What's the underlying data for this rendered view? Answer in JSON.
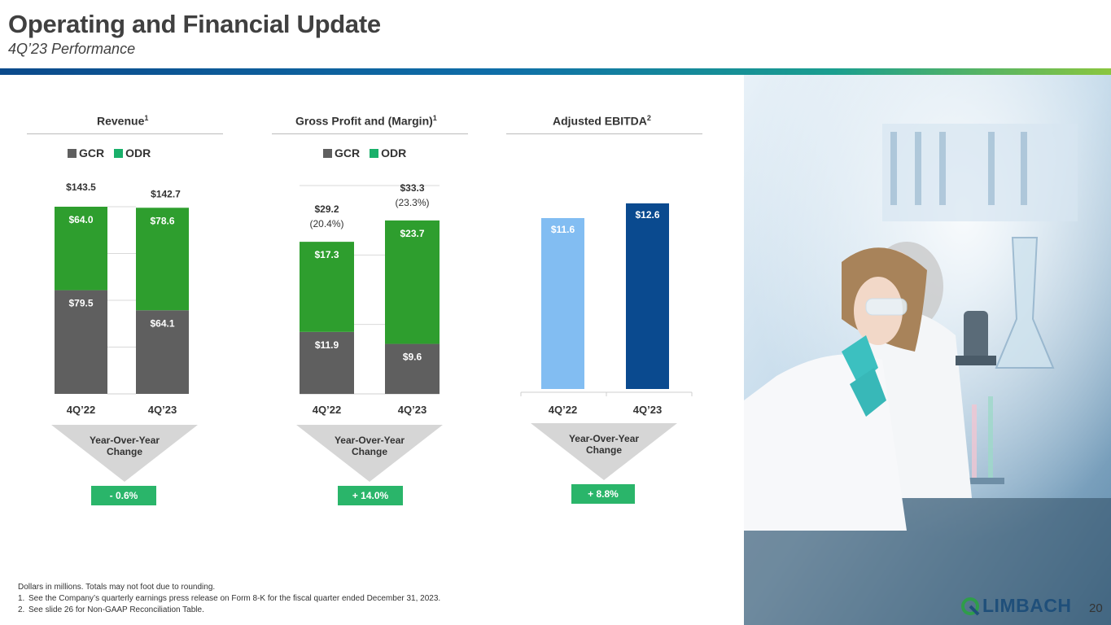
{
  "header": {
    "title": "Operating and Financial Update",
    "subtitle": "4Q’23 Performance"
  },
  "colors": {
    "gcr": "#5f5f5f",
    "odr": "#2e9e2e",
    "ebitda_4q22": "#82bdf2",
    "ebitda_4q23": "#0a4a8f",
    "badge": "#2ab56a",
    "accent_bar_start": "#0b4a8b",
    "accent_bar_end": "#8ac63f"
  },
  "legend": {
    "gcr": "GCR",
    "odr": "ODR"
  },
  "panels": {
    "revenue": {
      "title": "Revenue",
      "sup": "1",
      "yoy_line1": "Year-Over-Year",
      "yoy_line2": "Change",
      "yoy_value": "- 0.6%"
    },
    "gross_profit": {
      "title": "Gross Profit and (Margin)",
      "sup": "1",
      "yoy_line1": "Year-Over-Year",
      "yoy_line2": "Change",
      "yoy_value": "+ 14.0%"
    },
    "ebitda": {
      "title": "Adjusted EBITDA",
      "sup": "2",
      "yoy_line1": "Year-Over-Year",
      "yoy_line2": "Change",
      "yoy_value": "+ 8.8%"
    }
  },
  "chart_data": [
    {
      "type": "bar",
      "stacked": true,
      "title": "Revenue",
      "categories": [
        "4Q’22",
        "4Q’23"
      ],
      "series": [
        {
          "name": "GCR",
          "values": [
            79.5,
            64.1
          ],
          "labels": [
            "$79.5",
            "$64.1"
          ]
        },
        {
          "name": "ODR",
          "values": [
            64.0,
            78.6
          ],
          "labels": [
            "$64.0",
            "$78.6"
          ]
        }
      ],
      "totals": [
        "$143.5",
        "$142.7"
      ],
      "ylim": [
        0,
        143.5
      ],
      "legend_position": "top",
      "grid": true
    },
    {
      "type": "bar",
      "stacked": true,
      "title": "Gross Profit and (Margin)",
      "categories": [
        "4Q’22",
        "4Q’23"
      ],
      "series": [
        {
          "name": "GCR",
          "values": [
            11.9,
            9.6
          ],
          "labels": [
            "$11.9",
            "$9.6"
          ]
        },
        {
          "name": "ODR",
          "values": [
            17.3,
            23.7
          ],
          "labels": [
            "$17.3",
            "$23.7"
          ]
        }
      ],
      "totals": [
        "$29.2",
        "$33.3"
      ],
      "margins": [
        "(20.4%)",
        "(23.3%)"
      ],
      "ylim": [
        0,
        40
      ],
      "legend_position": "top",
      "grid": true
    },
    {
      "type": "bar",
      "title": "Adjusted EBITDA",
      "categories": [
        "4Q’22",
        "4Q’23"
      ],
      "values": [
        11.6,
        12.6
      ],
      "labels": [
        "$11.6",
        "$12.6"
      ],
      "ylim": [
        0,
        14.25
      ],
      "grid": false
    }
  ],
  "footnotes": {
    "intro": "Dollars in millions. Totals may not foot due to rounding.",
    "n1": "1.",
    "t1": "See the Company’s quarterly earnings press release on Form 8-K for the fiscal quarter ended December 31, 2023.",
    "n2": "2.",
    "t2": "See slide 26 for Non-GAAP Reconciliation Table."
  },
  "brand": {
    "logo_text": "LIMBACH"
  },
  "page_number": "20"
}
